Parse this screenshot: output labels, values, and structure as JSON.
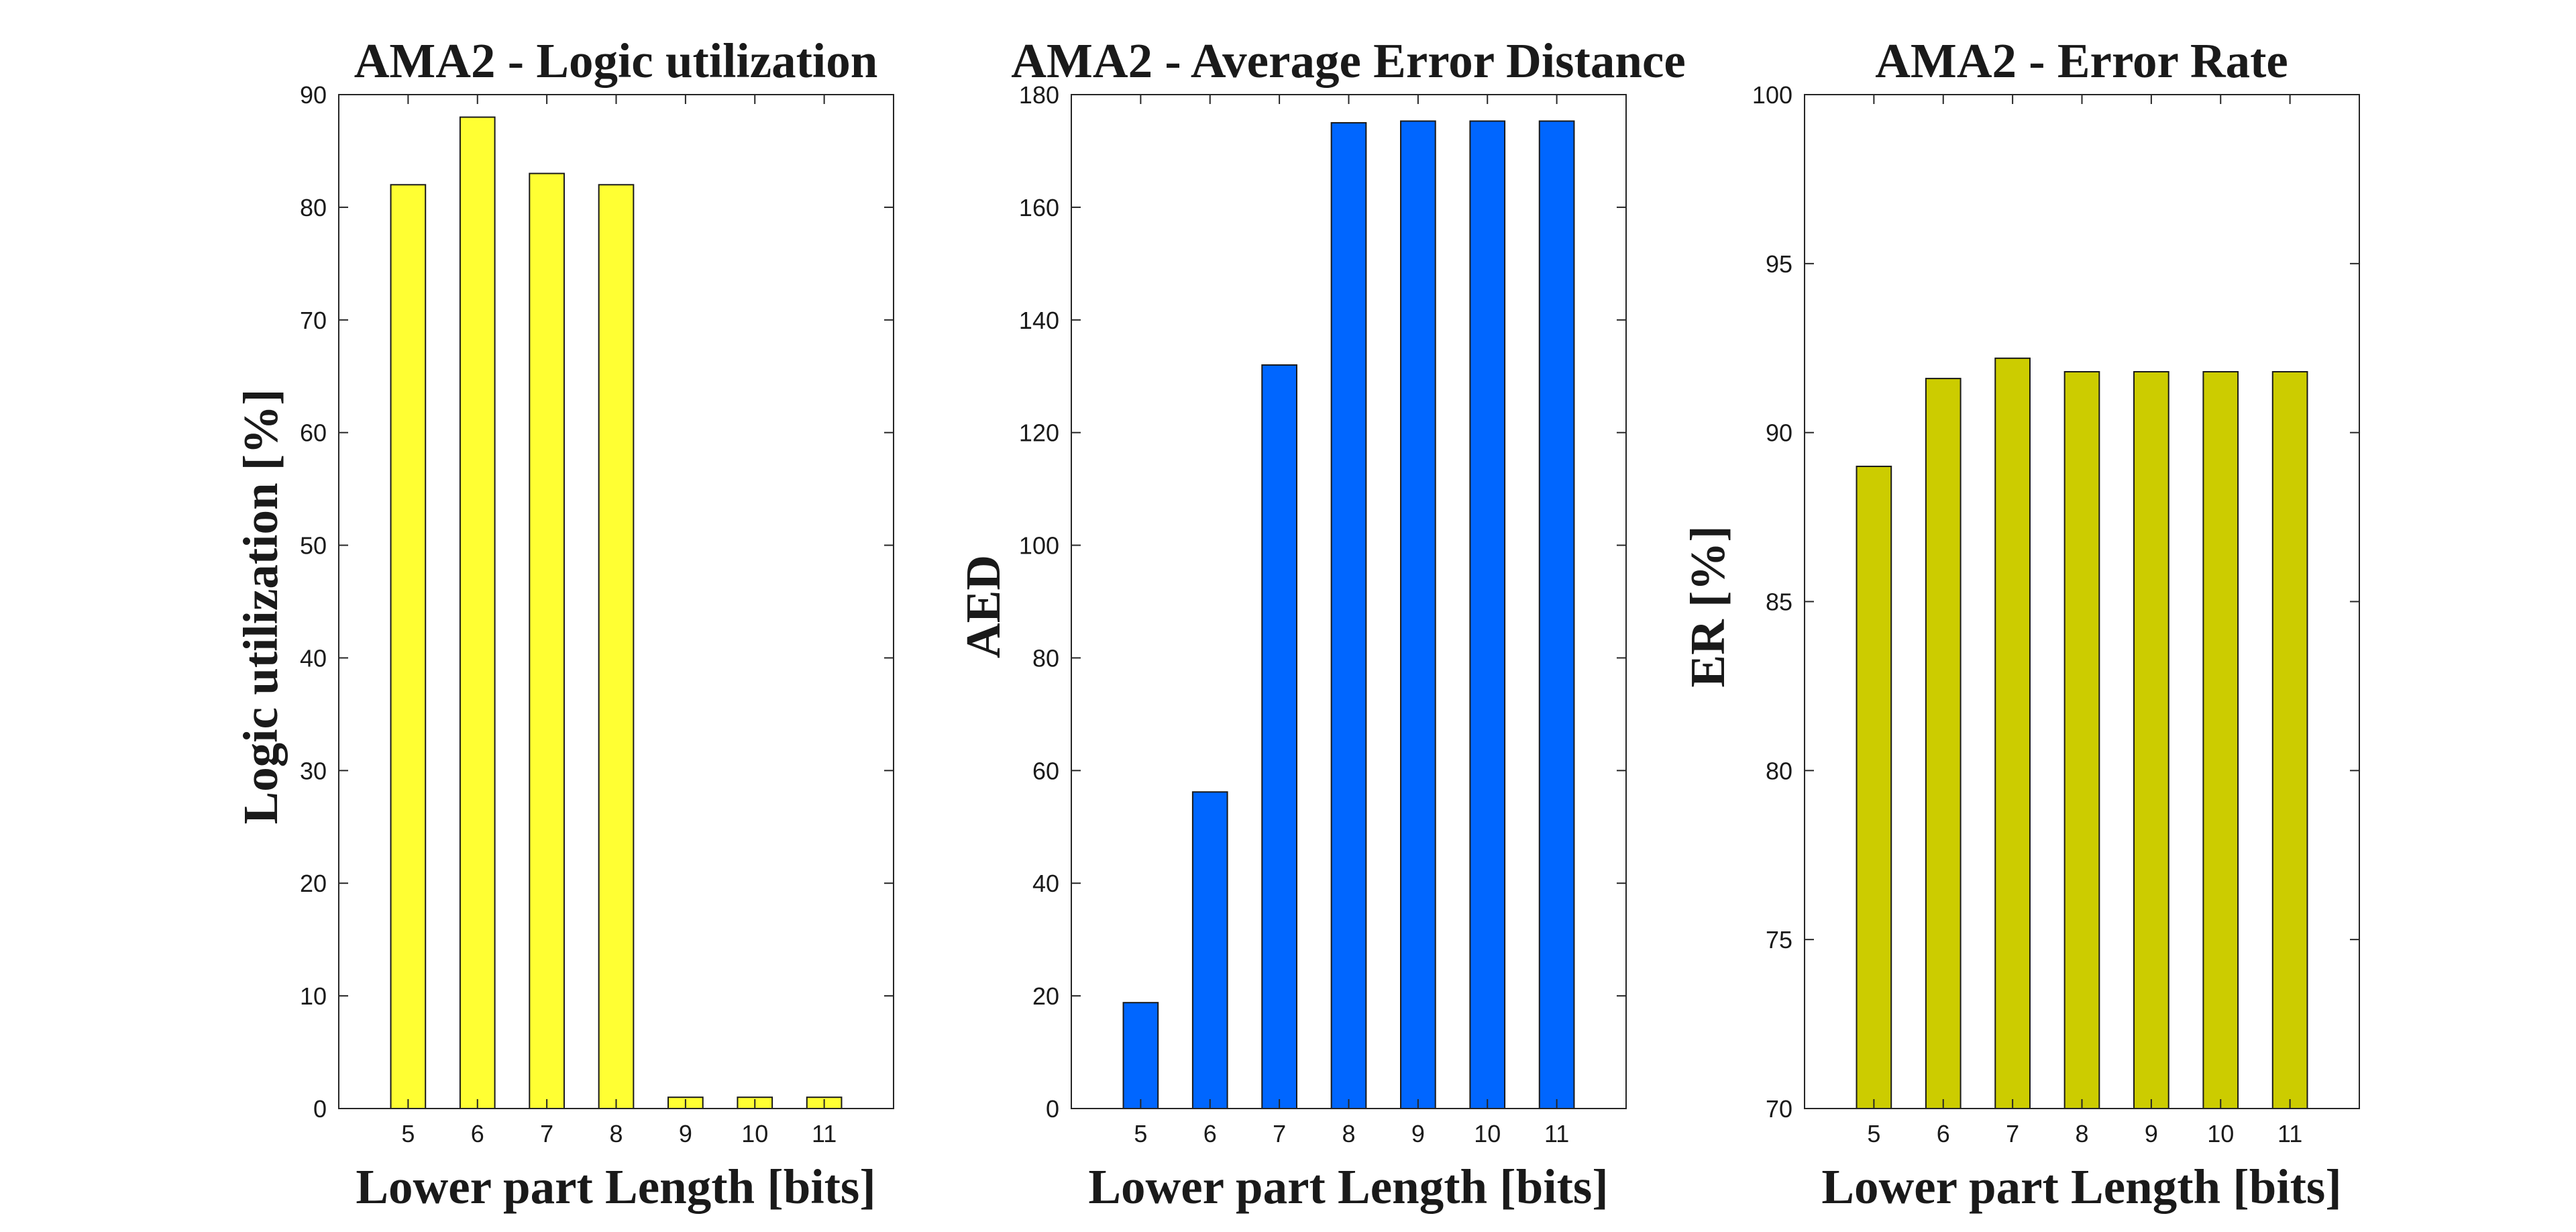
{
  "chart_data": [
    {
      "type": "bar",
      "title": "AMA2 - Logic utilization",
      "xlabel": "Lower part Length [bits]",
      "ylabel": "Logic utilization [%]",
      "categories": [
        "5",
        "6",
        "7",
        "8",
        "9",
        "10",
        "11"
      ],
      "values": [
        82,
        88,
        83,
        82,
        1,
        1,
        1
      ],
      "ylim": [
        0,
        90
      ],
      "yticks": [
        "0",
        "10",
        "20",
        "30",
        "40",
        "50",
        "60",
        "70",
        "80",
        "90"
      ],
      "bar_color": "#ffff33",
      "grid": false
    },
    {
      "type": "bar",
      "title": "AMA2 - Average Error Distance",
      "xlabel": "Lower part Length [bits]",
      "ylabel": "AED",
      "categories": [
        "5",
        "6",
        "7",
        "8",
        "9",
        "10",
        "11"
      ],
      "values": [
        18.8,
        56.2,
        132,
        175,
        175.3,
        175.3,
        175.3
      ],
      "ylim": [
        0,
        180
      ],
      "yticks": [
        "0",
        "20",
        "40",
        "60",
        "80",
        "100",
        "120",
        "140",
        "160",
        "180"
      ],
      "bar_color": "#0066ff",
      "grid": false
    },
    {
      "type": "bar",
      "title": "AMA2 - Error Rate",
      "xlabel": "Lower part Length [bits]",
      "ylabel": "ER [%]",
      "categories": [
        "5",
        "6",
        "7",
        "8",
        "9",
        "10",
        "11"
      ],
      "values": [
        89,
        91.6,
        92.2,
        91.8,
        91.8,
        91.8,
        91.8
      ],
      "ylim": [
        70,
        100
      ],
      "yticks": [
        "70",
        "75",
        "80",
        "85",
        "90",
        "95",
        "100"
      ],
      "bar_color": "#cccc00",
      "grid": false
    }
  ]
}
